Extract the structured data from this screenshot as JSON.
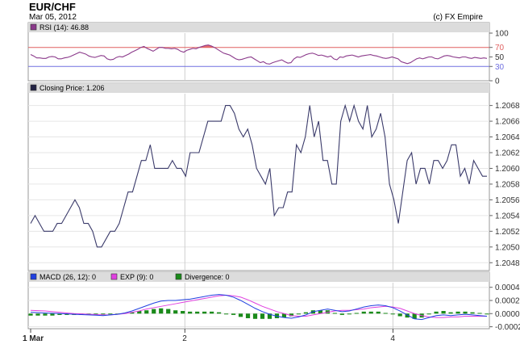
{
  "header": {
    "title": "EUR/CHF",
    "date": "Mar 05, 2012",
    "source": "(c) FX Empire"
  },
  "colors": {
    "rsi_line": "#8b3a8b",
    "rsi_fill": "#e87070",
    "overbought_line": "#e06060",
    "oversold_line": "#7070e0",
    "price_line": "#3a3a6a",
    "macd_line": "#2040e0",
    "exp_line": "#e040e0",
    "divergence_bar": "#1a8a1a",
    "panel_header": "#dcdcdc",
    "grid": "#e6e6e6"
  },
  "chart_data": [
    {
      "type": "line",
      "name": "rsi-panel",
      "legend": "RSI (14): 46.88",
      "legend_color": "#8b3a8b",
      "yticks": [
        {
          "v": 100,
          "label": "100",
          "color": "#333333"
        },
        {
          "v": 70,
          "label": "70",
          "color": "#e06060"
        },
        {
          "v": 50,
          "label": "50",
          "color": "#333333"
        },
        {
          "v": 30,
          "label": "30",
          "color": "#7070e0"
        },
        {
          "v": 0,
          "label": "0",
          "color": "#333333"
        }
      ],
      "ylim": [
        0,
        100
      ],
      "overbought": 70,
      "oversold": 30,
      "values": [
        55,
        52,
        48,
        48,
        47,
        47,
        50,
        51,
        50,
        46,
        46,
        48,
        49,
        51,
        54,
        57,
        60,
        58,
        56,
        52,
        50,
        49,
        51,
        53,
        52,
        46,
        44,
        45,
        49,
        51,
        50,
        53,
        56,
        60,
        63,
        66,
        70,
        72,
        68,
        65,
        62,
        66,
        70,
        70,
        68,
        68,
        67,
        68,
        66,
        62,
        60,
        64,
        66,
        68,
        67,
        70,
        72,
        74,
        75,
        73,
        70,
        66,
        62,
        58,
        56,
        54,
        50,
        46,
        44,
        45,
        47,
        49,
        50,
        46,
        42,
        38,
        40,
        36,
        35,
        38,
        40,
        42,
        44,
        40,
        37,
        38,
        46,
        50,
        49,
        52,
        55,
        57,
        58,
        56,
        53,
        54,
        52,
        50,
        52,
        46,
        44,
        50,
        49,
        52,
        53,
        54,
        52,
        50,
        52,
        53,
        54,
        55,
        53,
        52,
        50,
        48,
        47,
        48,
        50,
        48,
        46,
        40,
        38,
        36,
        38,
        42,
        46,
        48,
        46,
        48,
        50,
        50,
        47,
        46,
        49,
        52,
        53,
        52,
        50,
        49,
        48,
        50,
        50,
        48,
        47,
        49,
        48,
        47,
        48,
        47
      ]
    },
    {
      "type": "line",
      "name": "price-panel",
      "legend": "Closing Price: 1.206",
      "legend_color": "#222244",
      "yticks": [
        {
          "v": 1.2048,
          "label": "1.2048"
        },
        {
          "v": 1.205,
          "label": "1.2050"
        },
        {
          "v": 1.2052,
          "label": "1.2052"
        },
        {
          "v": 1.2054,
          "label": "1.2054"
        },
        {
          "v": 1.2056,
          "label": "1.2056"
        },
        {
          "v": 1.2058,
          "label": "1.2058"
        },
        {
          "v": 1.206,
          "label": "1.2060"
        },
        {
          "v": 1.2062,
          "label": "1.2062"
        },
        {
          "v": 1.2064,
          "label": "1.2064"
        },
        {
          "v": 1.2066,
          "label": "1.2066"
        },
        {
          "v": 1.2068,
          "label": "1.2068"
        }
      ],
      "ylim": [
        1.2047,
        1.20695
      ],
      "values": [
        1.2053,
        1.2054,
        1.2053,
        1.2052,
        1.2052,
        1.2052,
        1.2053,
        1.2053,
        1.2054,
        1.2055,
        1.2056,
        1.2055,
        1.2053,
        1.2053,
        1.2052,
        1.205,
        1.205,
        1.2051,
        1.2052,
        1.2052,
        1.2053,
        1.2055,
        1.2057,
        1.2057,
        1.2059,
        1.2061,
        1.2061,
        1.2063,
        1.206,
        1.206,
        1.206,
        1.206,
        1.2061,
        1.206,
        1.206,
        1.2059,
        1.2062,
        1.2062,
        1.2062,
        1.2064,
        1.2066,
        1.2066,
        1.2066,
        1.2066,
        1.2068,
        1.2068,
        1.2067,
        1.2065,
        1.2064,
        1.2065,
        1.2063,
        1.206,
        1.2059,
        1.2058,
        1.206,
        1.2054,
        1.2055,
        1.2055,
        1.2057,
        1.2057,
        1.2063,
        1.2062,
        1.2064,
        1.2068,
        1.2064,
        1.2066,
        1.2061,
        1.2061,
        1.2058,
        1.2058,
        1.2066,
        1.2068,
        1.2066,
        1.2068,
        1.2066,
        1.2065,
        1.2068,
        1.2064,
        1.2065,
        1.2067,
        1.2064,
        1.2058,
        1.2056,
        1.2053,
        1.2057,
        1.2061,
        1.2062,
        1.2058,
        1.206,
        1.206,
        1.2058,
        1.2061,
        1.2061,
        1.206,
        1.2061,
        1.2063,
        1.2063,
        1.2059,
        1.206,
        1.2058,
        1.2061,
        1.206,
        1.2059,
        1.2059
      ]
    },
    {
      "type": "line",
      "name": "macd-panel",
      "legends": [
        {
          "label": "MACD (26, 12): 0",
          "color": "#2040e0"
        },
        {
          "label": "EXP (9): 0",
          "color": "#e040e0"
        },
        {
          "label": "Divergence: 0",
          "color": "#1a8a1a"
        }
      ],
      "yticks": [
        {
          "v": 0.0004,
          "label": "0.0004"
        },
        {
          "v": 0.0002,
          "label": "0.0002"
        },
        {
          "v": 0.0,
          "label": "0.0000"
        },
        {
          "v": -0.0002,
          "label": "-0.0002"
        }
      ],
      "ylim": [
        -0.00023,
        0.00047
      ],
      "series": [
        {
          "name": "MACD (26, 12)",
          "color": "#2040e0",
          "values": [
            2e-05,
            1.5e-05,
            1e-05,
            5e-06,
            0.0,
            -5e-06,
            -1e-05,
            -1.5e-05,
            -2e-05,
            -2.5e-05,
            -3e-05,
            -2e-05,
            -1e-05,
            1e-05,
            4e-05,
            8e-05,
            0.00012,
            0.00016,
            0.00019,
            0.0002,
            0.0002,
            0.00021,
            0.00022,
            0.00024,
            0.00026,
            0.00028,
            0.00029,
            0.00028,
            0.00025,
            0.0002,
            0.00014,
            8e-05,
            3e-05,
            -1e-05,
            -4e-05,
            -6e-05,
            -7e-05,
            -5e-05,
            -2e-05,
            3e-05,
            5e-05,
            7e-05,
            5e-05,
            3e-05,
            4e-05,
            7e-05,
            0.0001,
            0.00012,
            0.00013,
            0.00012,
            9e-05,
            4e-05,
            -2e-05,
            -8e-05,
            -9e-05,
            -6e-05,
            -3e-05,
            -2e-05,
            -3e-05,
            -2e-05,
            -1e-05,
            -2e-05,
            -3e-05,
            -4e-05
          ]
        },
        {
          "name": "EXP (9)",
          "color": "#e040e0",
          "values": [
            5e-05,
            4.5e-05,
            4e-05,
            3e-05,
            2e-05,
            1e-05,
            0.0,
            -5e-06,
            -1e-05,
            -1.5e-05,
            -2e-05,
            -2e-05,
            -1e-05,
            0.0,
            2e-05,
            4e-05,
            7e-05,
            9e-05,
            0.00011,
            0.00013,
            0.00015,
            0.00017,
            0.00019,
            0.00021,
            0.00023,
            0.00025,
            0.00027,
            0.00028,
            0.00027,
            0.00025,
            0.00021,
            0.00016,
            0.00011,
            7e-05,
            3e-05,
            0.0,
            -3e-05,
            -4e-05,
            -4e-05,
            -2e-05,
            0.0,
            2e-05,
            4e-05,
            5e-05,
            5e-05,
            6e-05,
            7e-05,
            9e-05,
            0.0001,
            0.00011,
            0.0001,
            8e-05,
            4e-05,
            0.0,
            -3e-05,
            -5e-05,
            -6e-05,
            -6e-05,
            -5e-05,
            -5e-05,
            -4e-05,
            -4e-05,
            -4e-05,
            -4e-05
          ]
        },
        {
          "name": "Divergence",
          "color": "#1a8a1a",
          "type": "bar",
          "values": [
            -3e-05,
            -3e-05,
            -3e-05,
            -3e-05,
            -2e-05,
            -2e-05,
            -2e-05,
            -2e-05,
            -1e-05,
            -1e-05,
            -1e-05,
            0.0,
            0.0,
            1e-05,
            2e-05,
            4e-05,
            5e-05,
            7e-05,
            8e-05,
            7e-05,
            5e-05,
            4e-05,
            3e-05,
            3e-05,
            3e-05,
            3e-05,
            2e-05,
            0.0,
            -2e-05,
            -5e-05,
            -7e-05,
            -8e-05,
            -8e-05,
            -8e-05,
            -7e-05,
            -6e-05,
            -4e-05,
            -1e-05,
            2e-05,
            5e-05,
            5e-05,
            5e-05,
            1e-05,
            -2e-05,
            -1e-05,
            1e-05,
            3e-05,
            3e-05,
            3e-05,
            1e-05,
            -1e-05,
            -4e-05,
            -6e-05,
            -8e-05,
            -6e-05,
            -1e-05,
            3e-05,
            4e-05,
            2e-05,
            3e-05,
            3e-05,
            2e-05,
            1e-05,
            0.0
          ]
        }
      ]
    }
  ],
  "xaxis": {
    "ticks": [
      {
        "pos": 0.0,
        "label": "1 Mar"
      },
      {
        "pos": 0.338,
        "label": "2"
      },
      {
        "pos": 0.794,
        "label": "4"
      }
    ]
  }
}
